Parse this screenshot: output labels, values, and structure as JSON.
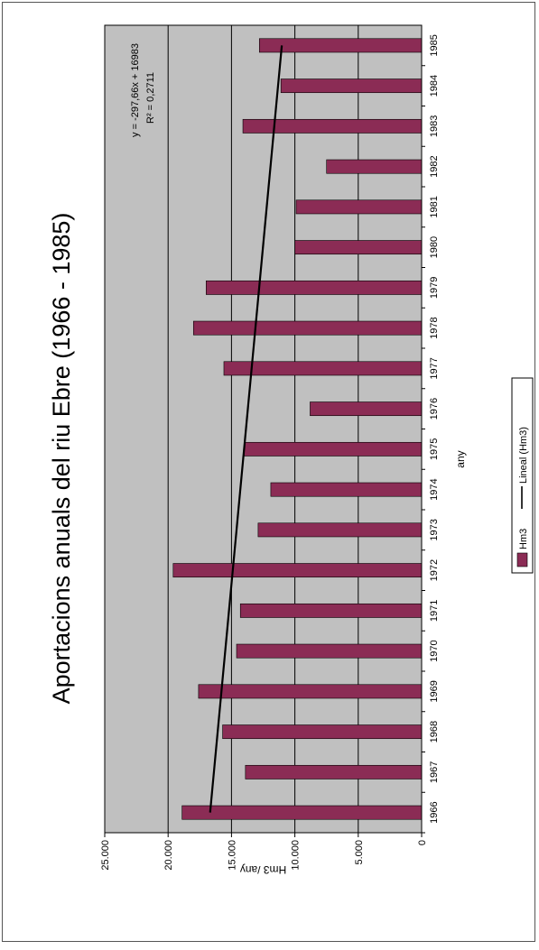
{
  "chart_data": {
    "type": "bar",
    "title": "Aportacions anuals del riu Ebre (1966 - 1985)",
    "xlabel": "any",
    "ylabel": "Hm3 /any",
    "categories": [
      "1966",
      "1967",
      "1968",
      "1969",
      "1970",
      "1971",
      "1972",
      "1973",
      "1974",
      "1975",
      "1976",
      "1977",
      "1978",
      "1979",
      "1980",
      "1981",
      "1982",
      "1983",
      "1984",
      "1985"
    ],
    "series": [
      {
        "name": "Hm3",
        "values": [
          18900,
          13900,
          15700,
          17600,
          14600,
          14300,
          19600,
          12900,
          11900,
          14000,
          8800,
          15600,
          18000,
          17000,
          10000,
          9900,
          7500,
          14100,
          11100,
          12800
        ]
      }
    ],
    "trendline": {
      "name": "Lineal (Hm3)",
      "equation": "y = -297,66x + 16983",
      "r_squared": "R² = 0,2711",
      "slope": -297.66,
      "intercept": 16983
    },
    "ylim": [
      0,
      25000
    ],
    "yticks": [
      "0",
      "5.000",
      "10.000",
      "15.000",
      "20.000",
      "25.000"
    ],
    "ytick_values": [
      0,
      5000,
      10000,
      15000,
      20000,
      25000
    ],
    "grid": true,
    "legend_position": "bottom",
    "colors": {
      "bar": "#8b2c55",
      "plot_bg": "#c0c0c0",
      "trend": "#000000",
      "grid": "#000000"
    }
  }
}
